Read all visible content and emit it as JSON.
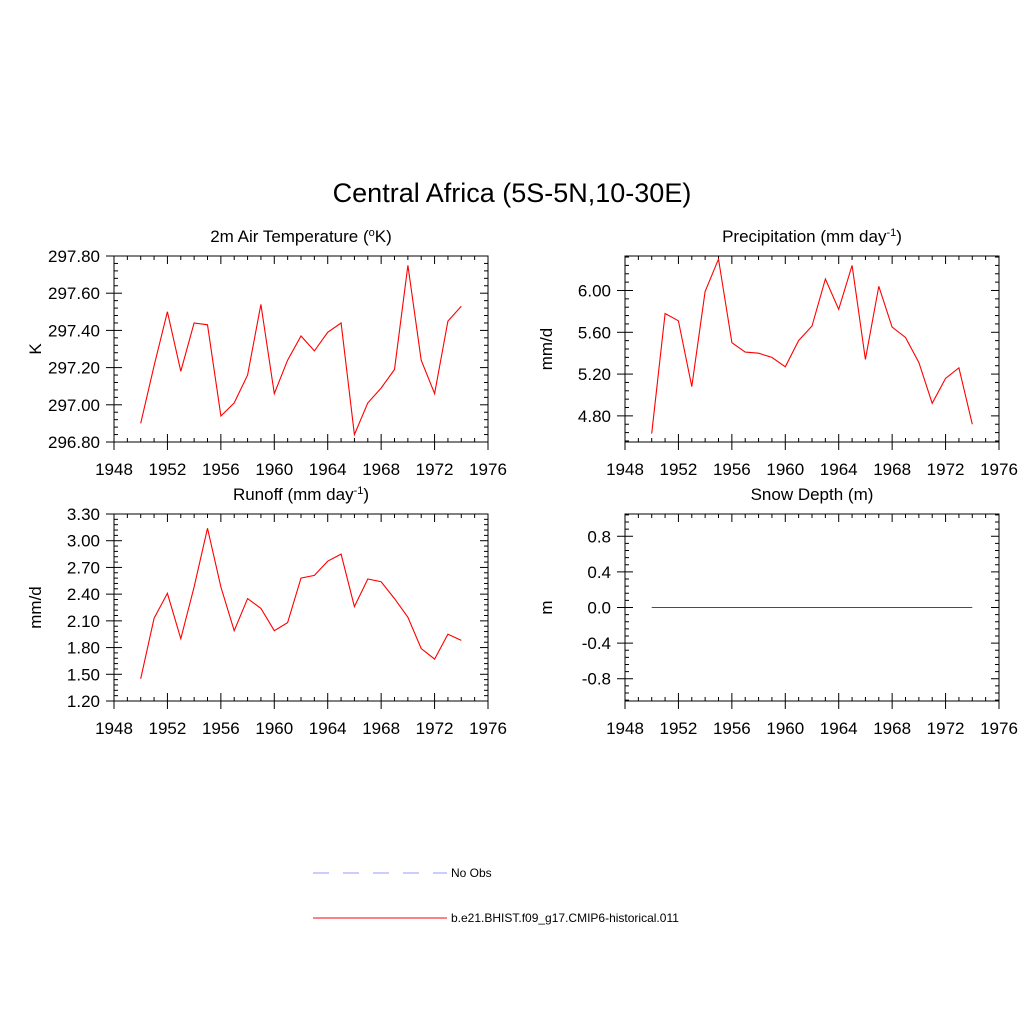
{
  "figure_title": "Central Africa (5S-5N,10-30E)",
  "colors": {
    "model": "#ff0000",
    "obs": "#9999ff",
    "axis": "#000000"
  },
  "legend": [
    {
      "label": "No Obs",
      "style": "dashed",
      "color": "#9999ff"
    },
    {
      "label": "b.e21.BHIST.f09_g17.CMIP6-historical.011",
      "style": "solid",
      "color": "#ff0000"
    }
  ],
  "chart_data": [
    {
      "type": "line",
      "title": "2m Air Temperature (",
      "title_sup": "o",
      "title_after": "K)",
      "ylabel": "K",
      "xlim": [
        1948,
        1976
      ],
      "ylim": [
        296.8,
        297.8
      ],
      "xticks": [
        1948,
        1952,
        1956,
        1960,
        1964,
        1968,
        1972,
        1976
      ],
      "yticks": [
        296.8,
        297.0,
        297.2,
        297.4,
        297.6,
        297.8
      ],
      "ytick_labels": [
        "296.80",
        "297.00",
        "297.20",
        "297.40",
        "297.60",
        "297.80"
      ],
      "series": [
        {
          "x": [
            1950,
            1951,
            1952,
            1953,
            1954,
            1955,
            1956,
            1957,
            1958,
            1959,
            1960,
            1961,
            1962,
            1963,
            1964,
            1965,
            1966,
            1967,
            1968,
            1969,
            1970,
            1971,
            1972,
            1973,
            1974
          ],
          "values": [
            296.9,
            297.21,
            297.5,
            297.18,
            297.44,
            297.43,
            296.94,
            297.01,
            297.16,
            297.54,
            297.06,
            297.24,
            297.37,
            297.29,
            297.39,
            297.44,
            296.84,
            297.01,
            297.09,
            297.19,
            297.75,
            297.24,
            297.06,
            297.45,
            297.53
          ]
        }
      ]
    },
    {
      "type": "line",
      "title": "Precipitation (mm day",
      "title_sup": "-1",
      "title_after": ")",
      "ylabel": "mm/d",
      "xlim": [
        1948,
        1976
      ],
      "ylim": [
        4.55,
        6.33
      ],
      "xticks": [
        1948,
        1952,
        1956,
        1960,
        1964,
        1968,
        1972,
        1976
      ],
      "yticks": [
        4.8,
        5.2,
        5.6,
        6.0
      ],
      "ytick_labels": [
        "4.80",
        "5.20",
        "5.60",
        "6.00"
      ],
      "series": [
        {
          "x": [
            1950,
            1951,
            1952,
            1953,
            1954,
            1955,
            1956,
            1957,
            1958,
            1959,
            1960,
            1961,
            1962,
            1963,
            1964,
            1965,
            1966,
            1967,
            1968,
            1969,
            1970,
            1971,
            1972,
            1973,
            1974
          ],
          "values": [
            4.63,
            5.78,
            5.71,
            5.08,
            5.99,
            6.3,
            5.5,
            5.41,
            5.4,
            5.36,
            5.27,
            5.52,
            5.66,
            6.11,
            5.82,
            6.24,
            5.34,
            6.04,
            5.65,
            5.55,
            5.31,
            4.92,
            5.16,
            5.26,
            4.72
          ]
        }
      ]
    },
    {
      "type": "line",
      "title": "Runoff (mm day",
      "title_sup": "-1",
      "title_after": ")",
      "ylabel": "mm/d",
      "xlim": [
        1948,
        1976
      ],
      "ylim": [
        1.2,
        3.3
      ],
      "xticks": [
        1948,
        1952,
        1956,
        1960,
        1964,
        1968,
        1972,
        1976
      ],
      "yticks": [
        1.2,
        1.5,
        1.8,
        2.1,
        2.4,
        2.7,
        3.0,
        3.3
      ],
      "ytick_labels": [
        "1.20",
        "1.50",
        "1.80",
        "2.10",
        "2.40",
        "2.70",
        "3.00",
        "3.30"
      ],
      "series": [
        {
          "x": [
            1950,
            1951,
            1952,
            1953,
            1954,
            1955,
            1956,
            1957,
            1958,
            1959,
            1960,
            1961,
            1962,
            1963,
            1964,
            1965,
            1966,
            1967,
            1968,
            1969,
            1970,
            1971,
            1972,
            1973,
            1974
          ],
          "values": [
            1.45,
            2.13,
            2.41,
            1.9,
            2.48,
            3.14,
            2.48,
            1.99,
            2.35,
            2.24,
            1.99,
            2.08,
            2.58,
            2.61,
            2.77,
            2.85,
            2.26,
            2.57,
            2.54,
            2.35,
            2.14,
            1.79,
            1.67,
            1.95,
            1.88
          ]
        }
      ]
    },
    {
      "type": "line",
      "title": "Snow Depth (m)",
      "title_sup": "",
      "title_after": "",
      "ylabel": "m",
      "xlim": [
        1948,
        1976
      ],
      "ylim": [
        -1.05,
        1.05
      ],
      "xticks": [
        1948,
        1952,
        1956,
        1960,
        1964,
        1968,
        1972,
        1976
      ],
      "yticks": [
        -0.8,
        -0.4,
        0.0,
        0.4,
        0.8
      ],
      "ytick_labels": [
        "-0.8",
        "-0.4",
        "0.0",
        "0.4",
        "0.8"
      ],
      "series": [
        {
          "x": [
            1950,
            1974
          ],
          "values": [
            0.0,
            0.0
          ]
        }
      ]
    }
  ]
}
